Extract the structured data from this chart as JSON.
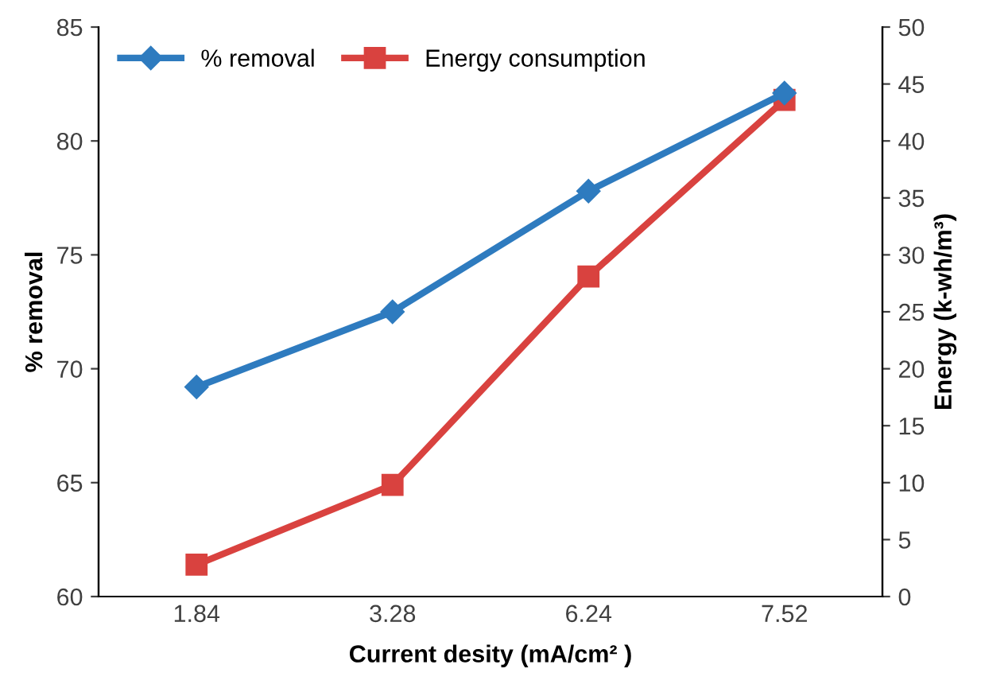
{
  "chart_data": {
    "type": "line",
    "xlabel": "Current desity (mA/cm² )",
    "ylabel": "% removal",
    "y2label": "Energy (k-wh/m³)",
    "categories": [
      "1.84",
      "3.28",
      "6.24",
      "7.52"
    ],
    "series": [
      {
        "name": "% removal",
        "color": "#2e7bbf",
        "marker": "diamond",
        "values": [
          69.2,
          72.5,
          77.8,
          82.1
        ]
      },
      {
        "name": "Energy consumption",
        "color": "#d9423f",
        "marker": "square",
        "axis": "y2",
        "values": [
          2.8,
          9.8,
          28.1,
          43.6
        ]
      }
    ],
    "ylim": [
      60,
      85
    ],
    "yticks": [
      60,
      65,
      70,
      75,
      80,
      85
    ],
    "y2lim": [
      0,
      50
    ],
    "y2ticks": [
      0,
      5,
      10,
      15,
      20,
      25,
      30,
      35,
      40,
      45,
      50
    ],
    "grid": false,
    "legend": "top left",
    "line_style": "solid"
  }
}
